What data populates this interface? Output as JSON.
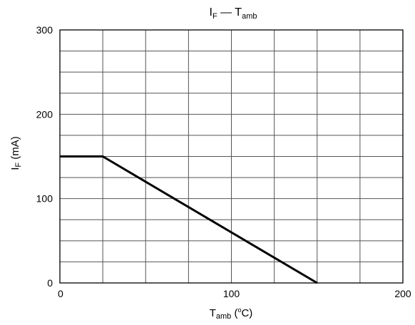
{
  "chart_data": {
    "type": "line",
    "title": {
      "main": "I",
      "sub": "F",
      "sep": " — ",
      "main2": "T",
      "sub2": "amb"
    },
    "xlabel": {
      "main": "T",
      "sub": "amb",
      "rest": " (",
      "sup": "o",
      "rest2": "C)"
    },
    "ylabel": {
      "main": "I",
      "sub": "F",
      "rest": " (mA)"
    },
    "xlim": [
      0,
      200
    ],
    "ylim": [
      0,
      300
    ],
    "x_major_ticks": [
      0,
      100,
      200
    ],
    "y_major_ticks": [
      0,
      100,
      200,
      300
    ],
    "x_grid_step": 25,
    "y_grid_step": 25,
    "grid": true,
    "series": [
      {
        "x": [
          0,
          25,
          150
        ],
        "y": [
          150,
          150,
          0
        ]
      }
    ]
  }
}
